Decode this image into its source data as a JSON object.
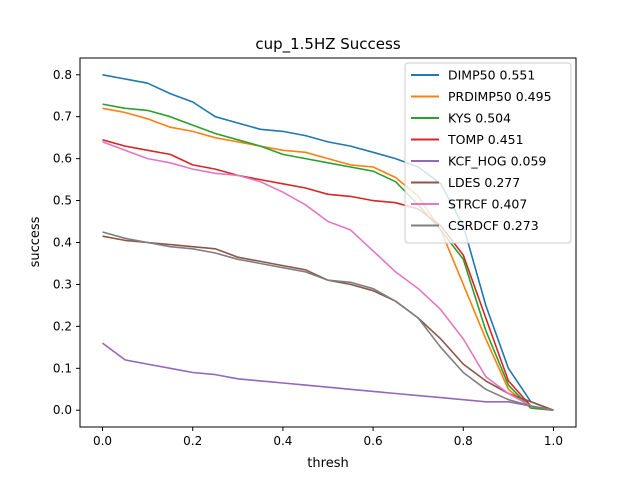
{
  "chart_data": {
    "type": "line",
    "title": "cup_1.5HZ Success",
    "xlabel": "thresh",
    "ylabel": "success",
    "xlim": [
      -0.05,
      1.05
    ],
    "ylim": [
      -0.04,
      0.84
    ],
    "xticks": [
      0.0,
      0.2,
      0.4,
      0.6,
      0.8,
      1.0
    ],
    "xtick_labels": [
      "0.0",
      "0.2",
      "0.4",
      "0.6",
      "0.8",
      "1.0"
    ],
    "yticks": [
      0.0,
      0.1,
      0.2,
      0.3,
      0.4,
      0.5,
      0.6,
      0.7,
      0.8
    ],
    "ytick_labels": [
      "0.0",
      "0.1",
      "0.2",
      "0.3",
      "0.4",
      "0.5",
      "0.6",
      "0.7",
      "0.8"
    ],
    "grid": false,
    "legend_position": "top-right",
    "x": [
      0.0,
      0.05,
      0.1,
      0.15,
      0.2,
      0.25,
      0.3,
      0.35,
      0.4,
      0.45,
      0.5,
      0.55,
      0.6,
      0.65,
      0.7,
      0.75,
      0.8,
      0.85,
      0.9,
      0.95,
      1.0
    ],
    "series": [
      {
        "name": "DIMP50 0.551",
        "color": "#1f77b4",
        "values": [
          0.8,
          0.79,
          0.78,
          0.755,
          0.735,
          0.7,
          0.685,
          0.67,
          0.665,
          0.655,
          0.64,
          0.63,
          0.615,
          0.6,
          0.58,
          0.54,
          0.44,
          0.25,
          0.1,
          0.02,
          0.0
        ]
      },
      {
        "name": "PRDIMP50 0.495",
        "color": "#ff7f0e",
        "values": [
          0.72,
          0.71,
          0.695,
          0.675,
          0.665,
          0.65,
          0.64,
          0.63,
          0.62,
          0.615,
          0.6,
          0.585,
          0.58,
          0.555,
          0.51,
          0.43,
          0.3,
          0.17,
          0.05,
          0.005,
          0.0
        ]
      },
      {
        "name": "KYS 0.504",
        "color": "#2ca02c",
        "values": [
          0.73,
          0.72,
          0.715,
          0.7,
          0.68,
          0.66,
          0.645,
          0.63,
          0.61,
          0.6,
          0.59,
          0.58,
          0.57,
          0.545,
          0.49,
          0.43,
          0.36,
          0.19,
          0.06,
          0.005,
          0.0
        ]
      },
      {
        "name": "TOMP 0.451",
        "color": "#d62728",
        "values": [
          0.645,
          0.63,
          0.62,
          0.61,
          0.585,
          0.575,
          0.56,
          0.55,
          0.54,
          0.53,
          0.515,
          0.51,
          0.5,
          0.495,
          0.48,
          0.44,
          0.37,
          0.22,
          0.07,
          0.01,
          0.0
        ]
      },
      {
        "name": "KCF_HOG 0.059",
        "color": "#9467bd",
        "values": [
          0.16,
          0.12,
          0.11,
          0.1,
          0.09,
          0.085,
          0.075,
          0.07,
          0.065,
          0.06,
          0.055,
          0.05,
          0.045,
          0.04,
          0.035,
          0.03,
          0.025,
          0.02,
          0.02,
          0.01,
          0.0
        ]
      },
      {
        "name": "LDES 0.277",
        "color": "#8c564b",
        "values": [
          0.415,
          0.405,
          0.4,
          0.395,
          0.39,
          0.385,
          0.365,
          0.355,
          0.345,
          0.335,
          0.31,
          0.3,
          0.285,
          0.26,
          0.22,
          0.17,
          0.11,
          0.07,
          0.04,
          0.02,
          0.0
        ]
      },
      {
        "name": "STRCF 0.407",
        "color": "#e377c2",
        "values": [
          0.64,
          0.62,
          0.6,
          0.59,
          0.575,
          0.565,
          0.56,
          0.545,
          0.52,
          0.49,
          0.45,
          0.43,
          0.38,
          0.33,
          0.29,
          0.24,
          0.17,
          0.08,
          0.04,
          0.01,
          0.0
        ]
      },
      {
        "name": "CSRDCF 0.273",
        "color": "#7f7f7f",
        "values": [
          0.425,
          0.41,
          0.4,
          0.39,
          0.385,
          0.375,
          0.36,
          0.35,
          0.34,
          0.33,
          0.31,
          0.305,
          0.29,
          0.26,
          0.22,
          0.15,
          0.09,
          0.05,
          0.025,
          0.01,
          0.0
        ]
      }
    ]
  }
}
